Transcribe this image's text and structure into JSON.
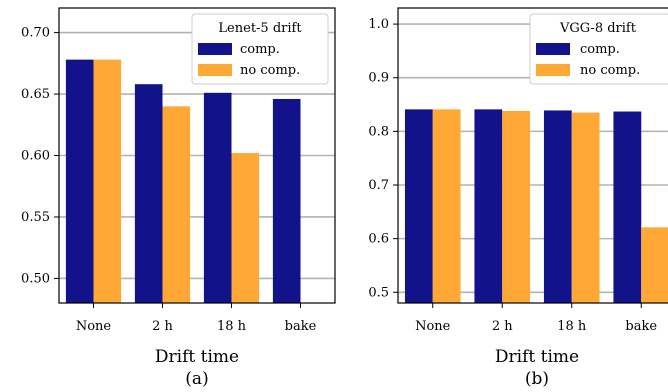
{
  "colors": {
    "comp": "#12128a",
    "no_comp": "#ffa836",
    "grid": "#b3b3b3",
    "axis": "#000000"
  },
  "chart_data": [
    {
      "type": "bar",
      "panel_label": "(a)",
      "xlabel": "Drift time",
      "ylabel": "",
      "categories": [
        "None",
        "2 h",
        "18 h",
        "bake"
      ],
      "series": [
        {
          "name": "comp.",
          "values": [
            0.678,
            0.658,
            0.651,
            0.646
          ]
        },
        {
          "name": "no comp.",
          "values": [
            0.678,
            0.64,
            0.602,
            null
          ]
        }
      ],
      "ylim": [
        0.48,
        0.72
      ],
      "yticks": [
        "0.50",
        "0.55",
        "0.60",
        "0.65",
        "0.70"
      ],
      "grid": true,
      "legend": {
        "title": "Lenet-5 drift",
        "position": "top-right"
      }
    },
    {
      "type": "bar",
      "panel_label": "(b)",
      "xlabel": "Drift time",
      "ylabel": "",
      "categories": [
        "None",
        "2 h",
        "18 h",
        "bake"
      ],
      "series": [
        {
          "name": "comp.",
          "values": [
            0.841,
            0.841,
            0.839,
            0.837
          ]
        },
        {
          "name": "no comp.",
          "values": [
            0.841,
            0.838,
            0.835,
            0.621
          ]
        }
      ],
      "ylim": [
        0.48,
        1.03
      ],
      "yticks": [
        "0.5",
        "0.6",
        "0.7",
        "0.8",
        "0.9",
        "1.0"
      ],
      "grid": true,
      "legend": {
        "title": "VGG-8 drift",
        "position": "top-right"
      }
    }
  ]
}
